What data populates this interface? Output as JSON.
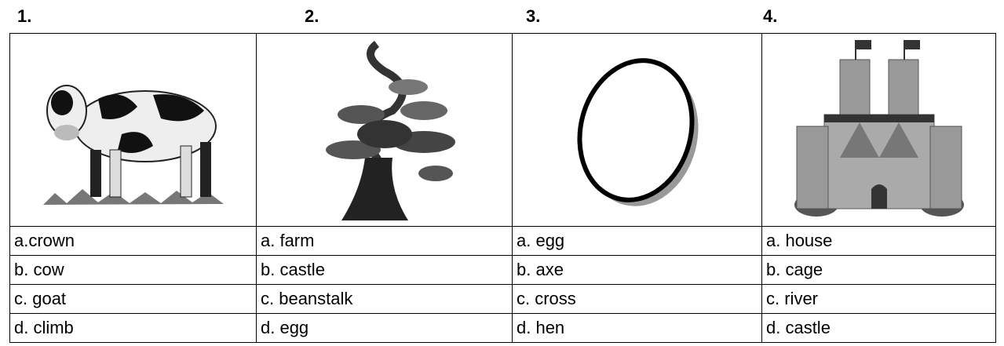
{
  "questions": [
    {
      "number": "1.",
      "options": [
        "a.crown",
        "b. cow",
        "c. goat",
        "d. climb"
      ]
    },
    {
      "number": "2.",
      "options": [
        "a. farm",
        "b. castle",
        "c. beanstalk",
        "d. egg"
      ]
    },
    {
      "number": "3.",
      "options": [
        "a. egg",
        "b. axe",
        "c. cross",
        "d. hen"
      ]
    },
    {
      "number": "4.",
      "options": [
        "a. house",
        "b. cage",
        "c. river",
        "d. castle"
      ]
    }
  ]
}
